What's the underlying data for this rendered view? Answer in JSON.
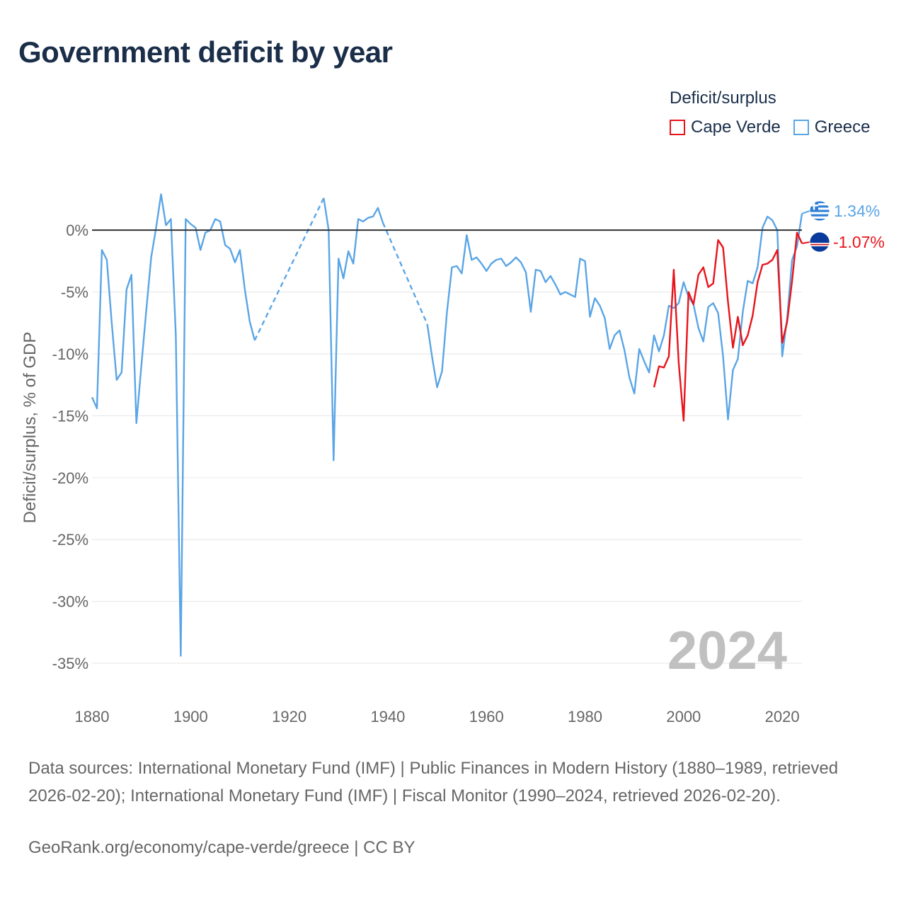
{
  "title": "Government deficit by year",
  "legend": {
    "title": "Deficit/surplus",
    "items": [
      {
        "label": "Cape Verde",
        "color": "#e8141b"
      },
      {
        "label": "Greece",
        "color": "#5aa5e6"
      }
    ]
  },
  "footer": {
    "sources": "Data sources: International Monetary Fund (IMF) | Public Finances in Modern History (1880–1989, retrieved 2026-02-20); International Monetary Fund (IMF) | Fiscal Monitor (1990–2024, retrieved 2026-02-20).",
    "link": "GeoRank.org/economy/cape-verde/greece | CC BY"
  },
  "chart_data": {
    "type": "line",
    "title": "Government deficit by year",
    "xlabel": "",
    "ylabel": "Deficit/surplus, % of GDP",
    "xlim": [
      1880,
      2024
    ],
    "ylim": [
      -37,
      3.5
    ],
    "x_ticks": [
      1880,
      1900,
      1920,
      1940,
      1960,
      1980,
      2000,
      2020
    ],
    "x_tick_labels": [
      "1880",
      "1900",
      "1920",
      "1940",
      "1960",
      "1980",
      "2000",
      "2020"
    ],
    "y_ticks": [
      0,
      -5,
      -10,
      -15,
      -20,
      -25,
      -30,
      -35
    ],
    "y_tick_labels": [
      "0%",
      "-5%",
      "-10%",
      "-15%",
      "-20%",
      "-25%",
      "-30%",
      "-35%"
    ],
    "year_label": "2024",
    "series": [
      {
        "name": "Greece",
        "color": "#5aa5e6",
        "end_label": "1.34%",
        "points": [
          [
            1880,
            -13.5
          ],
          [
            1881,
            -14.4
          ],
          [
            1882,
            -1.6
          ],
          [
            1883,
            -2.4
          ],
          [
            1884,
            -7.5
          ],
          [
            1885,
            -12.1
          ],
          [
            1886,
            -11.5
          ],
          [
            1887,
            -4.8
          ],
          [
            1888,
            -3.6
          ],
          [
            1889,
            -15.6
          ],
          [
            1890,
            -11.0
          ],
          [
            1891,
            -6.5
          ],
          [
            1892,
            -2.2
          ],
          [
            1893,
            0.2
          ],
          [
            1894,
            2.9
          ],
          [
            1895,
            0.4
          ],
          [
            1896,
            0.9
          ],
          [
            1897,
            -8.5
          ],
          [
            1898,
            -34.4
          ],
          [
            1899,
            0.9
          ],
          [
            1900,
            0.5
          ],
          [
            1901,
            0.2
          ],
          [
            1902,
            -1.6
          ],
          [
            1903,
            -0.2
          ],
          [
            1904,
            0.0
          ],
          [
            1905,
            0.9
          ],
          [
            1906,
            0.7
          ],
          [
            1907,
            -1.2
          ],
          [
            1908,
            -1.5
          ],
          [
            1909,
            -2.6
          ],
          [
            1910,
            -1.6
          ],
          [
            1911,
            -4.8
          ],
          [
            1912,
            -7.4
          ],
          [
            1913,
            -8.9
          ],
          [
            1927,
            2.6
          ],
          [
            1928,
            0.0
          ],
          [
            1929,
            -18.6
          ],
          [
            1930,
            -2.3
          ],
          [
            1931,
            -3.9
          ],
          [
            1932,
            -1.7
          ],
          [
            1933,
            -2.7
          ],
          [
            1934,
            0.9
          ],
          [
            1935,
            0.7
          ],
          [
            1936,
            1.0
          ],
          [
            1937,
            1.1
          ],
          [
            1938,
            1.8
          ],
          [
            1939,
            0.6
          ],
          [
            1948,
            -7.6
          ],
          [
            1949,
            -10.3
          ],
          [
            1950,
            -12.7
          ],
          [
            1951,
            -11.4
          ],
          [
            1952,
            -6.6
          ],
          [
            1953,
            -3.0
          ],
          [
            1954,
            -2.9
          ],
          [
            1955,
            -3.5
          ],
          [
            1956,
            -0.4
          ],
          [
            1957,
            -2.4
          ],
          [
            1958,
            -2.2
          ],
          [
            1959,
            -2.7
          ],
          [
            1960,
            -3.3
          ],
          [
            1961,
            -2.7
          ],
          [
            1962,
            -2.4
          ],
          [
            1963,
            -2.3
          ],
          [
            1964,
            -2.9
          ],
          [
            1965,
            -2.6
          ],
          [
            1966,
            -2.2
          ],
          [
            1967,
            -2.6
          ],
          [
            1968,
            -3.4
          ],
          [
            1969,
            -6.6
          ],
          [
            1970,
            -3.2
          ],
          [
            1971,
            -3.3
          ],
          [
            1972,
            -4.2
          ],
          [
            1973,
            -3.7
          ],
          [
            1974,
            -4.4
          ],
          [
            1975,
            -5.2
          ],
          [
            1976,
            -5.0
          ],
          [
            1977,
            -5.2
          ],
          [
            1978,
            -5.4
          ],
          [
            1979,
            -2.3
          ],
          [
            1980,
            -2.5
          ],
          [
            1981,
            -7.0
          ],
          [
            1982,
            -5.5
          ],
          [
            1983,
            -6.1
          ],
          [
            1984,
            -7.1
          ],
          [
            1985,
            -9.6
          ],
          [
            1986,
            -8.5
          ],
          [
            1987,
            -8.1
          ],
          [
            1988,
            -9.7
          ],
          [
            1989,
            -11.9
          ],
          [
            1990,
            -13.2
          ],
          [
            1991,
            -9.6
          ],
          [
            1992,
            -10.6
          ],
          [
            1993,
            -11.5
          ],
          [
            1994,
            -8.5
          ],
          [
            1995,
            -9.8
          ],
          [
            1996,
            -8.5
          ],
          [
            1997,
            -6.1
          ],
          [
            1998,
            -6.3
          ],
          [
            1999,
            -5.9
          ],
          [
            2000,
            -4.2
          ],
          [
            2001,
            -5.4
          ],
          [
            2002,
            -6.0
          ],
          [
            2003,
            -7.9
          ],
          [
            2004,
            -9.0
          ],
          [
            2005,
            -6.2
          ],
          [
            2006,
            -5.9
          ],
          [
            2007,
            -6.7
          ],
          [
            2008,
            -10.2
          ],
          [
            2009,
            -15.3
          ],
          [
            2010,
            -11.3
          ],
          [
            2011,
            -10.4
          ],
          [
            2012,
            -6.6
          ],
          [
            2013,
            -4.1
          ],
          [
            2014,
            -4.3
          ],
          [
            2015,
            -3.0
          ],
          [
            2016,
            0.2
          ],
          [
            2017,
            1.1
          ],
          [
            2018,
            0.8
          ],
          [
            2019,
            0.0
          ],
          [
            2020,
            -10.2
          ],
          [
            2021,
            -7.1
          ],
          [
            2022,
            -2.4
          ],
          [
            2023,
            -1.3
          ],
          [
            2024,
            1.34
          ]
        ],
        "dashed_gaps": [
          [
            1913,
            1927
          ],
          [
            1939,
            1948
          ]
        ]
      },
      {
        "name": "Cape Verde",
        "color": "#e8141b",
        "end_label": "-1.07%",
        "points": [
          [
            1994,
            -12.7
          ],
          [
            1995,
            -11.0
          ],
          [
            1996,
            -11.1
          ],
          [
            1997,
            -10.2
          ],
          [
            1998,
            -3.2
          ],
          [
            1999,
            -10.7
          ],
          [
            2000,
            -15.4
          ],
          [
            2001,
            -5.0
          ],
          [
            2002,
            -6.0
          ],
          [
            2003,
            -3.6
          ],
          [
            2004,
            -3.0
          ],
          [
            2005,
            -4.6
          ],
          [
            2006,
            -4.3
          ],
          [
            2007,
            -0.8
          ],
          [
            2008,
            -1.4
          ],
          [
            2009,
            -5.8
          ],
          [
            2010,
            -9.5
          ],
          [
            2011,
            -7.0
          ],
          [
            2012,
            -9.3
          ],
          [
            2013,
            -8.5
          ],
          [
            2014,
            -6.9
          ],
          [
            2015,
            -4.2
          ],
          [
            2016,
            -2.8
          ],
          [
            2017,
            -2.7
          ],
          [
            2018,
            -2.4
          ],
          [
            2019,
            -1.6
          ],
          [
            2020,
            -9.1
          ],
          [
            2021,
            -7.4
          ],
          [
            2022,
            -4.1
          ],
          [
            2023,
            -0.2
          ],
          [
            2024,
            -1.07
          ]
        ]
      }
    ]
  }
}
